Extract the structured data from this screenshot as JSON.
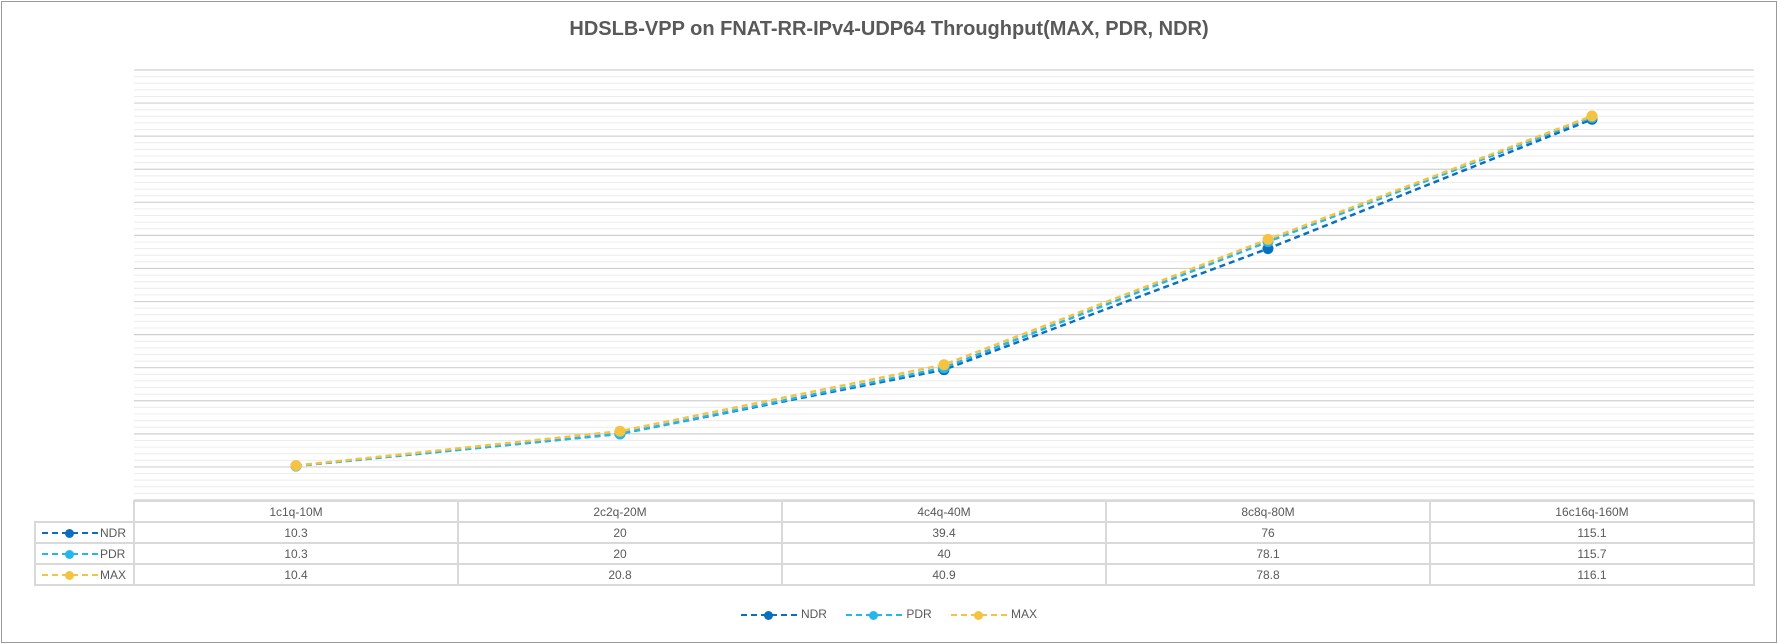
{
  "chart_data": {
    "type": "line",
    "title": "HDSLB-VPP on FNAT-RR-IPv4-UDP64 Throughput(MAX, PDR, NDR)",
    "categories": [
      "1c1q-10M",
      "2c2q-20M",
      "4c4q-40M",
      "8c8q-80M",
      "16c16q-160M"
    ],
    "series": [
      {
        "name": "NDR",
        "values": [
          10.3,
          20,
          39.4,
          76,
          115.1
        ],
        "color": "#0b6fbf",
        "display": [
          "10.3",
          "20",
          "39.4",
          "76",
          "115.1"
        ]
      },
      {
        "name": "PDR",
        "values": [
          10.3,
          20,
          40,
          78.1,
          115.7
        ],
        "color": "#24b8ea",
        "display": [
          "10.3",
          "20",
          "40",
          "78.1",
          "115.7"
        ]
      },
      {
        "name": "MAX",
        "values": [
          10.4,
          20.8,
          40.9,
          78.8,
          116.1
        ],
        "color": "#f5c342",
        "display": [
          "10.4",
          "20.8",
          "40.9",
          "78.8",
          "116.1"
        ]
      }
    ],
    "ylim": [
      0,
      130
    ],
    "grid": true,
    "y_tick_labels_visible": false,
    "data_table": true,
    "legend_position": "bottom"
  }
}
